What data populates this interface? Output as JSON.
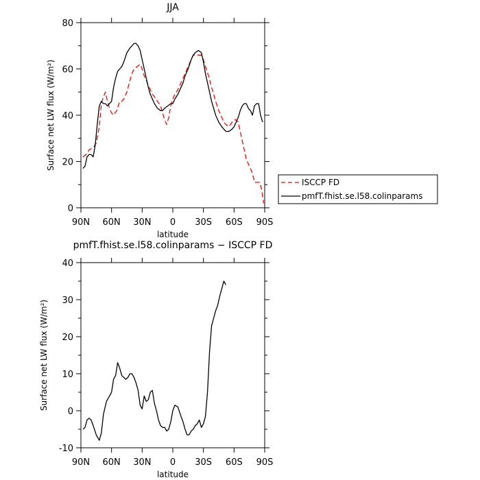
{
  "chart_data": [
    {
      "type": "line",
      "title": "JJA",
      "xlabel": "latitude",
      "ylabel": "Surface net LW flux (W/m²)",
      "xlim": [
        90,
        -90
      ],
      "ylim": [
        0,
        80
      ],
      "x_ticks": [
        {
          "value": 90,
          "label": "90N"
        },
        {
          "value": 60,
          "label": "60N"
        },
        {
          "value": 30,
          "label": "30N"
        },
        {
          "value": 0,
          "label": "0"
        },
        {
          "value": -30,
          "label": "30S"
        },
        {
          "value": -60,
          "label": "60S"
        },
        {
          "value": -90,
          "label": "90S"
        }
      ],
      "y_ticks": [
        0,
        20,
        40,
        60,
        80
      ],
      "legend_position": "right",
      "series": [
        {
          "name": "ISCCP FD",
          "color": "#ff0000",
          "dash": "dashed",
          "points": [
            [
              88,
              22
            ],
            [
              85,
              23
            ],
            [
              82,
              25
            ],
            [
              78,
              26
            ],
            [
              75,
              28
            ],
            [
              72,
              35
            ],
            [
              70,
              45
            ],
            [
              68,
              48
            ],
            [
              66,
              50
            ],
            [
              64,
              46
            ],
            [
              62,
              43
            ],
            [
              60,
              41
            ],
            [
              58,
              40
            ],
            [
              55,
              42
            ],
            [
              52,
              46
            ],
            [
              50,
              46
            ],
            [
              48,
              47
            ],
            [
              45,
              50
            ],
            [
              42,
              55
            ],
            [
              40,
              58
            ],
            [
              38,
              60
            ],
            [
              35,
              61
            ],
            [
              32,
              62
            ],
            [
              30,
              60
            ],
            [
              28,
              57
            ],
            [
              25,
              54
            ],
            [
              22,
              51
            ],
            [
              20,
              49
            ],
            [
              18,
              48
            ],
            [
              15,
              46
            ],
            [
              12,
              44
            ],
            [
              10,
              41
            ],
            [
              8,
              38
            ],
            [
              6,
              36
            ],
            [
              4,
              39
            ],
            [
              2,
              44
            ],
            [
              0,
              47
            ],
            [
              -2,
              49
            ],
            [
              -5,
              51
            ],
            [
              -8,
              54
            ],
            [
              -10,
              56
            ],
            [
              -12,
              58
            ],
            [
              -15,
              61
            ],
            [
              -18,
              64
            ],
            [
              -20,
              66
            ],
            [
              -22,
              66
            ],
            [
              -25,
              66
            ],
            [
              -28,
              66
            ],
            [
              -30,
              64
            ],
            [
              -32,
              61
            ],
            [
              -35,
              57
            ],
            [
              -38,
              52
            ],
            [
              -40,
              49
            ],
            [
              -42,
              46
            ],
            [
              -45,
              42
            ],
            [
              -48,
              39
            ],
            [
              -50,
              37
            ],
            [
              -52,
              36
            ],
            [
              -55,
              35
            ],
            [
              -58,
              37
            ],
            [
              -60,
              38
            ],
            [
              -62,
              38
            ],
            [
              -64,
              37
            ],
            [
              -66,
              33
            ],
            [
              -68,
              29
            ],
            [
              -70,
              25
            ],
            [
              -72,
              21
            ],
            [
              -75,
              18
            ],
            [
              -78,
              15
            ],
            [
              -80,
              11
            ],
            [
              -82,
              11
            ],
            [
              -85,
              11
            ],
            [
              -87,
              8
            ],
            [
              -89,
              2
            ]
          ]
        },
        {
          "name": "pmfT.fhist.se.l58.colinparams",
          "color": "#000000",
          "dash": "solid",
          "points": [
            [
              88,
              17
            ],
            [
              86,
              18
            ],
            [
              84,
              22
            ],
            [
              82,
              23
            ],
            [
              80,
              23
            ],
            [
              78,
              22
            ],
            [
              76,
              27
            ],
            [
              74,
              36
            ],
            [
              72,
              44
            ],
            [
              70,
              46
            ],
            [
              68,
              45
            ],
            [
              66,
              45
            ],
            [
              64,
              44
            ],
            [
              62,
              45
            ],
            [
              60,
              46
            ],
            [
              58,
              52
            ],
            [
              56,
              56
            ],
            [
              54,
              59
            ],
            [
              52,
              60
            ],
            [
              50,
              61
            ],
            [
              48,
              63
            ],
            [
              45,
              67
            ],
            [
              42,
              69
            ],
            [
              40,
              70
            ],
            [
              38,
              71
            ],
            [
              36,
              71
            ],
            [
              34,
              70
            ],
            [
              32,
              68
            ],
            [
              30,
              64
            ],
            [
              28,
              60
            ],
            [
              26,
              56
            ],
            [
              24,
              52
            ],
            [
              22,
              49
            ],
            [
              20,
              47
            ],
            [
              18,
              45
            ],
            [
              15,
              43
            ],
            [
              12,
              42
            ],
            [
              10,
              42
            ],
            [
              8,
              43
            ],
            [
              5,
              44
            ],
            [
              2,
              45
            ],
            [
              0,
              45
            ],
            [
              -2,
              47
            ],
            [
              -5,
              49
            ],
            [
              -8,
              52
            ],
            [
              -10,
              54
            ],
            [
              -12,
              57
            ],
            [
              -15,
              60
            ],
            [
              -18,
              64
            ],
            [
              -20,
              66
            ],
            [
              -22,
              67
            ],
            [
              -25,
              68
            ],
            [
              -28,
              67
            ],
            [
              -30,
              63
            ],
            [
              -32,
              58
            ],
            [
              -35,
              52
            ],
            [
              -38,
              46
            ],
            [
              -40,
              43
            ],
            [
              -42,
              40
            ],
            [
              -45,
              37
            ],
            [
              -48,
              35
            ],
            [
              -50,
              34
            ],
            [
              -52,
              33
            ],
            [
              -55,
              33
            ],
            [
              -58,
              34
            ],
            [
              -60,
              35
            ],
            [
              -62,
              37
            ],
            [
              -64,
              39
            ],
            [
              -66,
              42
            ],
            [
              -68,
              44
            ],
            [
              -70,
              45
            ],
            [
              -72,
              45
            ],
            [
              -74,
              43
            ],
            [
              -76,
              42
            ],
            [
              -78,
              40
            ],
            [
              -80,
              44
            ],
            [
              -82,
              45
            ],
            [
              -84,
              45
            ],
            [
              -86,
              40
            ],
            [
              -88,
              37
            ]
          ]
        }
      ]
    },
    {
      "type": "line",
      "title": "pmfT.fhist.se.l58.colinparams − ISCCP FD",
      "xlabel": "latitude",
      "ylabel": "Surface net LW flux (W/m²)",
      "xlim": [
        90,
        -90
      ],
      "ylim": [
        -10,
        40
      ],
      "x_ticks": [
        {
          "value": 90,
          "label": "90N"
        },
        {
          "value": 60,
          "label": "60N"
        },
        {
          "value": 30,
          "label": "30N"
        },
        {
          "value": 0,
          "label": "0"
        },
        {
          "value": -30,
          "label": "30S"
        },
        {
          "value": -60,
          "label": "60S"
        },
        {
          "value": -90,
          "label": "90S"
        }
      ],
      "y_ticks": [
        -10,
        0,
        10,
        20,
        30,
        40
      ],
      "series": [
        {
          "name": "",
          "color": "#000000",
          "dash": "solid",
          "points": [
            [
              88,
              -5
            ],
            [
              86,
              -4.5
            ],
            [
              84,
              -2.5
            ],
            [
              82,
              -2
            ],
            [
              80,
              -2.5
            ],
            [
              78,
              -4
            ],
            [
              75,
              -6.5
            ],
            [
              72,
              -8
            ],
            [
              70,
              -6
            ],
            [
              68,
              -1
            ],
            [
              65,
              2.5
            ],
            [
              62,
              4
            ],
            [
              60,
              5
            ],
            [
              58,
              8.5
            ],
            [
              56,
              9.5
            ],
            [
              54,
              13
            ],
            [
              52,
              11.5
            ],
            [
              50,
              9.5
            ],
            [
              48,
              9
            ],
            [
              46,
              8.5
            ],
            [
              44,
              9
            ],
            [
              42,
              10
            ],
            [
              40,
              10
            ],
            [
              38,
              9
            ],
            [
              36,
              7.5
            ],
            [
              34,
              5.5
            ],
            [
              32,
              1.5
            ],
            [
              30,
              0.5
            ],
            [
              28,
              4
            ],
            [
              26,
              2.5
            ],
            [
              24,
              3
            ],
            [
              22,
              5
            ],
            [
              20,
              5.5
            ],
            [
              18,
              2
            ],
            [
              16,
              0
            ],
            [
              14,
              -2.5
            ],
            [
              12,
              -4
            ],
            [
              10,
              -4.5
            ],
            [
              8,
              -4.5
            ],
            [
              6,
              -5.5
            ],
            [
              4,
              -5
            ],
            [
              2,
              -3
            ],
            [
              0,
              0
            ],
            [
              -2,
              1.5
            ],
            [
              -5,
              1
            ],
            [
              -8,
              -1.5
            ],
            [
              -10,
              -3
            ],
            [
              -12,
              -5
            ],
            [
              -14,
              -6.5
            ],
            [
              -16,
              -6.5
            ],
            [
              -18,
              -5.5
            ],
            [
              -20,
              -5
            ],
            [
              -22,
              -4
            ],
            [
              -24,
              -3.5
            ],
            [
              -26,
              -2.5
            ],
            [
              -28,
              -4.5
            ],
            [
              -30,
              -3.5
            ],
            [
              -32,
              -1.5
            ],
            [
              -34,
              5
            ],
            [
              -36,
              16
            ],
            [
              -38,
              23
            ],
            [
              -40,
              25
            ],
            [
              -42,
              27
            ],
            [
              -44,
              28.5
            ],
            [
              -46,
              31
            ],
            [
              -48,
              33
            ],
            [
              -50,
              35
            ],
            [
              -52,
              34
            ]
          ]
        }
      ]
    }
  ]
}
